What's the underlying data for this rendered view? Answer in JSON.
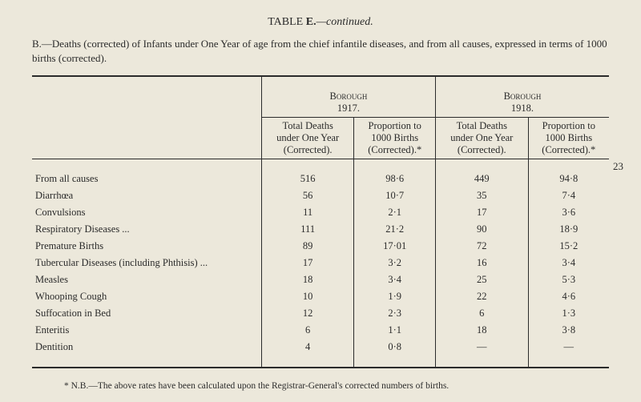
{
  "title_prefix": "TABLE ",
  "title_letter": "E.",
  "title_suffix": "—continued.",
  "subtitle": "B.—Deaths (corrected) of Infants under One Year of age from the chief infantile diseases, and from all causes, expressed in terms of 1000 births (corrected).",
  "page_number": "23",
  "header": {
    "group1_line1": "Borough",
    "group1_line2": "1917.",
    "group2_line1": "Borough",
    "group2_line2": "1918.",
    "col_a_line1": "Total Deaths",
    "col_a_line2": "under One Year",
    "col_a_line3": "(Corrected).",
    "col_b_line1": "Proportion to",
    "col_b_line2": "1000 Births",
    "col_b_line3": "(Corrected).*",
    "col_c_line1": "Total Deaths",
    "col_c_line2": "under One Year",
    "col_c_line3": "(Corrected).",
    "col_d_line1": "Proportion to",
    "col_d_line2": "1000 Births",
    "col_d_line3": "(Corrected).*"
  },
  "rows": [
    {
      "label": "From all causes",
      "a": "516",
      "b": "98·6",
      "c": "449",
      "d": "94·8"
    },
    {
      "label": "Diarrhœa",
      "a": "56",
      "b": "10·7",
      "c": "35",
      "d": "7·4"
    },
    {
      "label": "Convulsions",
      "a": "11",
      "b": "2·1",
      "c": "17",
      "d": "3·6"
    },
    {
      "label": "Respiratory Diseases ...",
      "a": "111",
      "b": "21·2",
      "c": "90",
      "d": "18·9"
    },
    {
      "label": "Premature Births",
      "a": "89",
      "b": "17·01",
      "c": "72",
      "d": "15·2"
    },
    {
      "label": "Tubercular Diseases (including Phthisis)   ...",
      "a": "17",
      "b": "3·2",
      "c": "16",
      "d": "3·4"
    },
    {
      "label": "Measles",
      "a": "18",
      "b": "3·4",
      "c": "25",
      "d": "5·3"
    },
    {
      "label": "Whooping Cough",
      "a": "10",
      "b": "1·9",
      "c": "22",
      "d": "4·6"
    },
    {
      "label": "Suffocation in Bed",
      "a": "12",
      "b": "2·3",
      "c": "6",
      "d": "1·3"
    },
    {
      "label": "Enteritis",
      "a": "6",
      "b": "1·1",
      "c": "18",
      "d": "3·8"
    },
    {
      "label": "Dentition",
      "a": "4",
      "b": "0·8",
      "c": "—",
      "d": "—"
    }
  ],
  "footnote": "* N.B.—The above rates have been calculated upon the Registrar-General's corrected numbers of births.",
  "colors": {
    "background": "#ece8db",
    "text": "#2b2b2b",
    "rule": "#2b2b2b"
  }
}
